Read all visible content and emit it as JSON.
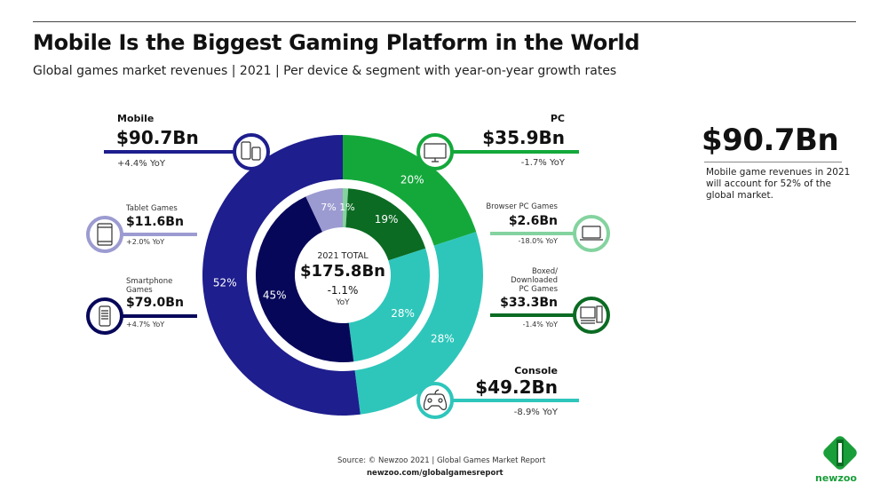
{
  "header": {
    "title": "Mobile Is the Biggest Gaming Platform in the World",
    "subtitle": "Global games market revenues | 2021 | Per device & segment with year-on-year growth rates"
  },
  "chart_data": {
    "type": "pie",
    "subtype": "nested-donut",
    "center": {
      "label": "2021 TOTAL",
      "value": "$175.8Bn",
      "growth": "-1.1%",
      "growth_unit": "YoY"
    },
    "outer": [
      {
        "name": "PC",
        "share_pct": 20,
        "revenue": "$35.9Bn",
        "yoy": "-1.7% YoY",
        "color": "#14a83b",
        "icon": "monitor-icon"
      },
      {
        "name": "Console",
        "share_pct": 28,
        "revenue": "$49.2Bn",
        "yoy": "-8.9% YoY",
        "color": "#2ec6bb",
        "icon": "gamepad-icon"
      },
      {
        "name": "Mobile",
        "share_pct": 52,
        "revenue": "$90.7Bn",
        "yoy": "+4.4% YoY",
        "color": "#1e1e8e",
        "icon": "mobile-devices-icon"
      }
    ],
    "inner": [
      {
        "name": "Browser PC Games",
        "share_pct": 1,
        "revenue": "$2.6Bn",
        "yoy": "-18.0% YoY",
        "color": "#84d39f",
        "icon": "laptop-icon"
      },
      {
        "name": "Boxed/ Downloaded PC Games",
        "name_lines": [
          "Boxed/",
          "Downloaded",
          "PC Games"
        ],
        "share_pct": 19,
        "revenue": "$33.3Bn",
        "yoy": "-1.4% YoY",
        "color": "#0b6b23",
        "icon": "desktop-tower-icon"
      },
      {
        "name": "Console",
        "share_pct": 28,
        "color": "#2ec6bb"
      },
      {
        "name": "Smartphone Games",
        "name_lines": [
          "Smartphone",
          "Games"
        ],
        "share_pct": 45,
        "revenue": "$79.0Bn",
        "yoy": "+4.7% YoY",
        "color": "#07075a",
        "icon": "smartphone-icon"
      },
      {
        "name": "Tablet Games",
        "share_pct": 7,
        "revenue": "$11.6Bn",
        "yoy": "+2.0% YoY",
        "color": "#9c9bd1",
        "icon": "tablet-icon"
      }
    ],
    "percent_labels_outer": [
      "20%",
      "28%",
      "52%"
    ],
    "percent_labels_inner": [
      "1%",
      "19%",
      "28%",
      "45%",
      "7%"
    ]
  },
  "highlight": {
    "value": "$90.7Bn",
    "note": "Mobile game revenues in 2021 will account for 52% of the global market."
  },
  "footer": {
    "source": "Source: © Newzoo 2021 | Global Games Market Report",
    "url": "newzoo.com/globalgamesreport",
    "logo_text": "newzoo",
    "logo_color": "#1a9e3a"
  }
}
